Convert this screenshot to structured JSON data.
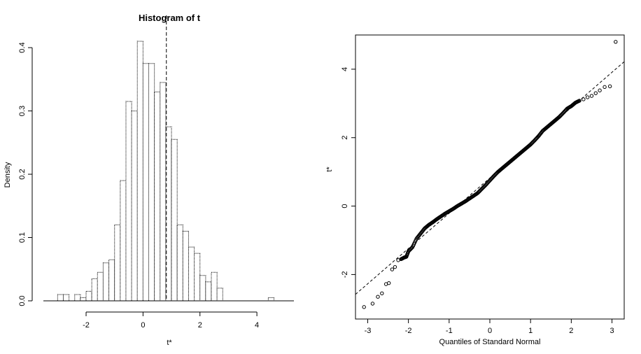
{
  "chart_data": [
    {
      "type": "bar",
      "subtype": "histogram",
      "title": "Histogram of t",
      "xlabel": "t*",
      "ylabel": "Density",
      "xlim": [
        -3.5,
        5.3
      ],
      "ylim": [
        0,
        0.42
      ],
      "bin_width": 0.2,
      "xticks": [
        -2,
        0,
        2,
        4
      ],
      "yticks": [
        0.0,
        0.1,
        0.2,
        0.3,
        0.4
      ],
      "x_tick_labels": [
        "-2",
        "0",
        "2",
        "4"
      ],
      "y_tick_labels": [
        "0.0",
        "0.1",
        "0.2",
        "0.3",
        "0.4"
      ],
      "reference_line": {
        "x": 0.82,
        "style": "dashed"
      },
      "bins": [
        {
          "x0": -3.0,
          "x1": -2.8,
          "density": 0.01
        },
        {
          "x0": -2.8,
          "x1": -2.6,
          "density": 0.01
        },
        {
          "x0": -2.6,
          "x1": -2.4,
          "density": 0.0
        },
        {
          "x0": -2.4,
          "x1": -2.2,
          "density": 0.01
        },
        {
          "x0": -2.2,
          "x1": -2.0,
          "density": 0.005
        },
        {
          "x0": -2.0,
          "x1": -1.8,
          "density": 0.015
        },
        {
          "x0": -1.8,
          "x1": -1.6,
          "density": 0.035
        },
        {
          "x0": -1.6,
          "x1": -1.4,
          "density": 0.045
        },
        {
          "x0": -1.4,
          "x1": -1.2,
          "density": 0.06
        },
        {
          "x0": -1.2,
          "x1": -1.0,
          "density": 0.065
        },
        {
          "x0": -1.0,
          "x1": -0.8,
          "density": 0.12
        },
        {
          "x0": -0.8,
          "x1": -0.6,
          "density": 0.19
        },
        {
          "x0": -0.6,
          "x1": -0.4,
          "density": 0.315
        },
        {
          "x0": -0.4,
          "x1": -0.2,
          "density": 0.3
        },
        {
          "x0": -0.2,
          "x1": 0.0,
          "density": 0.41
        },
        {
          "x0": 0.0,
          "x1": 0.2,
          "density": 0.375
        },
        {
          "x0": 0.2,
          "x1": 0.4,
          "density": 0.375
        },
        {
          "x0": 0.4,
          "x1": 0.6,
          "density": 0.33
        },
        {
          "x0": 0.6,
          "x1": 0.8,
          "density": 0.345
        },
        {
          "x0": 0.8,
          "x1": 1.0,
          "density": 0.275
        },
        {
          "x0": 1.0,
          "x1": 1.2,
          "density": 0.255
        },
        {
          "x0": 1.2,
          "x1": 1.4,
          "density": 0.12
        },
        {
          "x0": 1.4,
          "x1": 1.6,
          "density": 0.11
        },
        {
          "x0": 1.6,
          "x1": 1.8,
          "density": 0.085
        },
        {
          "x0": 1.8,
          "x1": 2.0,
          "density": 0.075
        },
        {
          "x0": 2.0,
          "x1": 2.2,
          "density": 0.04
        },
        {
          "x0": 2.2,
          "x1": 2.4,
          "density": 0.03
        },
        {
          "x0": 2.4,
          "x1": 2.6,
          "density": 0.045
        },
        {
          "x0": 2.6,
          "x1": 2.8,
          "density": 0.02
        },
        {
          "x0": 4.4,
          "x1": 4.6,
          "density": 0.005
        }
      ],
      "axis_line": {
        "x0": -3.5,
        "x1": 5.3,
        "y": 0
      }
    },
    {
      "type": "scatter",
      "subtype": "qq-plot",
      "title": "",
      "xlabel": "Quantiles of Standard Normal",
      "ylabel": "t*",
      "xlim": [
        -3.3,
        3.3
      ],
      "ylim": [
        -3.3,
        5.0
      ],
      "xticks": [
        -3,
        -2,
        -1,
        0,
        1,
        2,
        3
      ],
      "yticks": [
        -2,
        0,
        2,
        4
      ],
      "x_tick_labels": [
        "-3",
        "-2",
        "-1",
        "0",
        "1",
        "2",
        "3"
      ],
      "y_tick_labels": [
        "-2",
        "0",
        "2",
        "4"
      ],
      "reference_line": {
        "intercept": 0.82,
        "slope": 1.03,
        "style": "dashed"
      },
      "points": [
        {
          "x": -3.09,
          "y": -2.95
        },
        {
          "x": -2.88,
          "y": -2.85
        },
        {
          "x": -2.75,
          "y": -2.65
        },
        {
          "x": -2.65,
          "y": -2.55
        },
        {
          "x": -2.55,
          "y": -2.28
        },
        {
          "x": -2.48,
          "y": -2.25
        },
        {
          "x": -2.4,
          "y": -1.85
        },
        {
          "x": -2.33,
          "y": -1.78
        },
        {
          "x": -2.25,
          "y": -1.58
        },
        {
          "x": -2.18,
          "y": -1.55
        },
        {
          "x": -2.1,
          "y": -1.5
        },
        {
          "x": -2.05,
          "y": -1.48
        },
        {
          "x": -2.0,
          "y": -1.32
        },
        {
          "x": -1.9,
          "y": -1.2
        },
        {
          "x": -1.8,
          "y": -0.95
        },
        {
          "x": -1.7,
          "y": -0.8
        },
        {
          "x": -1.6,
          "y": -0.65
        },
        {
          "x": -1.5,
          "y": -0.55
        },
        {
          "x": -1.4,
          "y": -0.47
        },
        {
          "x": -1.3,
          "y": -0.38
        },
        {
          "x": -1.2,
          "y": -0.3
        },
        {
          "x": -1.1,
          "y": -0.22
        },
        {
          "x": -1.0,
          "y": -0.15
        },
        {
          "x": -0.9,
          "y": -0.08
        },
        {
          "x": -0.8,
          "y": 0.0
        },
        {
          "x": -0.7,
          "y": 0.07
        },
        {
          "x": -0.6,
          "y": 0.14
        },
        {
          "x": -0.5,
          "y": 0.22
        },
        {
          "x": -0.4,
          "y": 0.3
        },
        {
          "x": -0.3,
          "y": 0.38
        },
        {
          "x": -0.2,
          "y": 0.5
        },
        {
          "x": -0.1,
          "y": 0.62
        },
        {
          "x": 0.0,
          "y": 0.75
        },
        {
          "x": 0.1,
          "y": 0.88
        },
        {
          "x": 0.2,
          "y": 1.0
        },
        {
          "x": 0.3,
          "y": 1.1
        },
        {
          "x": 0.4,
          "y": 1.2
        },
        {
          "x": 0.5,
          "y": 1.3
        },
        {
          "x": 0.6,
          "y": 1.4
        },
        {
          "x": 0.7,
          "y": 1.5
        },
        {
          "x": 0.8,
          "y": 1.6
        },
        {
          "x": 0.9,
          "y": 1.7
        },
        {
          "x": 1.0,
          "y": 1.8
        },
        {
          "x": 1.1,
          "y": 1.92
        },
        {
          "x": 1.2,
          "y": 2.05
        },
        {
          "x": 1.3,
          "y": 2.2
        },
        {
          "x": 1.4,
          "y": 2.3
        },
        {
          "x": 1.5,
          "y": 2.4
        },
        {
          "x": 1.6,
          "y": 2.5
        },
        {
          "x": 1.7,
          "y": 2.6
        },
        {
          "x": 1.8,
          "y": 2.72
        },
        {
          "x": 1.9,
          "y": 2.85
        },
        {
          "x": 2.0,
          "y": 2.92
        },
        {
          "x": 2.1,
          "y": 3.02
        },
        {
          "x": 2.2,
          "y": 3.08
        },
        {
          "x": 2.3,
          "y": 3.12
        },
        {
          "x": 2.4,
          "y": 3.18
        },
        {
          "x": 2.5,
          "y": 3.22
        },
        {
          "x": 2.6,
          "y": 3.3
        },
        {
          "x": 2.7,
          "y": 3.38
        },
        {
          "x": 2.82,
          "y": 3.48
        },
        {
          "x": 2.95,
          "y": 3.5
        },
        {
          "x": 3.09,
          "y": 4.8
        }
      ]
    }
  ]
}
